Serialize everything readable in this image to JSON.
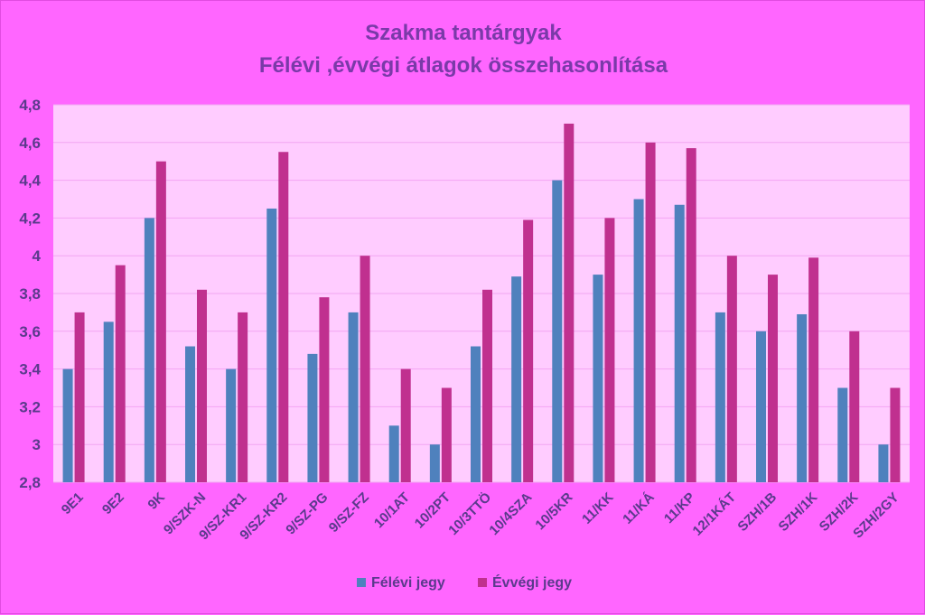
{
  "chart_data": {
    "type": "bar",
    "title": "Szakma tantárgyak",
    "subtitle": "Félévi ,évvégi átlagok összehasonlítása",
    "xlabel": "",
    "ylabel": "",
    "ylim": [
      2.8,
      4.8
    ],
    "yticks": [
      "2,8",
      "3",
      "3,2",
      "3,4",
      "3,6",
      "3,8",
      "4",
      "4,2",
      "4,4",
      "4,6",
      "4,8"
    ],
    "ytick_values": [
      2.8,
      3.0,
      3.2,
      3.4,
      3.6,
      3.8,
      4.0,
      4.2,
      4.4,
      4.6,
      4.8
    ],
    "grid": true,
    "legend_position": "bottom",
    "categories": [
      "9E1",
      "9E2",
      "9K",
      "9/SZK-N",
      "9/SZ-KR1",
      "9/SZ-KR2",
      "9/SZ-PG",
      "9/SZ-FZ",
      "10/1AT",
      "10/2PT",
      "10/3TTÖ",
      "10/4SZA",
      "10/5KR",
      "11/KK",
      "11/KÁ",
      "11/KP",
      "12/1KÁT",
      "SZH/1B",
      "SZH/1K",
      "SZH/2K",
      "SZH/2GY"
    ],
    "series": [
      {
        "name": "Félévi jegy",
        "color": "#4f81bd",
        "values": [
          3.4,
          3.65,
          4.2,
          3.52,
          3.4,
          4.25,
          3.48,
          3.7,
          3.1,
          3.0,
          3.52,
          3.89,
          4.4,
          3.9,
          4.3,
          4.27,
          3.7,
          3.6,
          3.69,
          3.3,
          3.0
        ]
      },
      {
        "name": "Évvégi jegy",
        "color": "#c0308f",
        "values": [
          3.7,
          3.95,
          4.5,
          3.82,
          3.7,
          4.55,
          3.78,
          4.0,
          3.4,
          3.3,
          3.82,
          4.19,
          4.7,
          4.2,
          4.6,
          4.57,
          4.0,
          3.9,
          3.99,
          3.6,
          3.3
        ]
      }
    ],
    "colors": {
      "background": "#ff66ff",
      "plot_area": "#ffccff",
      "text": "#5b3a8c",
      "title": "#7a3aa8"
    }
  }
}
